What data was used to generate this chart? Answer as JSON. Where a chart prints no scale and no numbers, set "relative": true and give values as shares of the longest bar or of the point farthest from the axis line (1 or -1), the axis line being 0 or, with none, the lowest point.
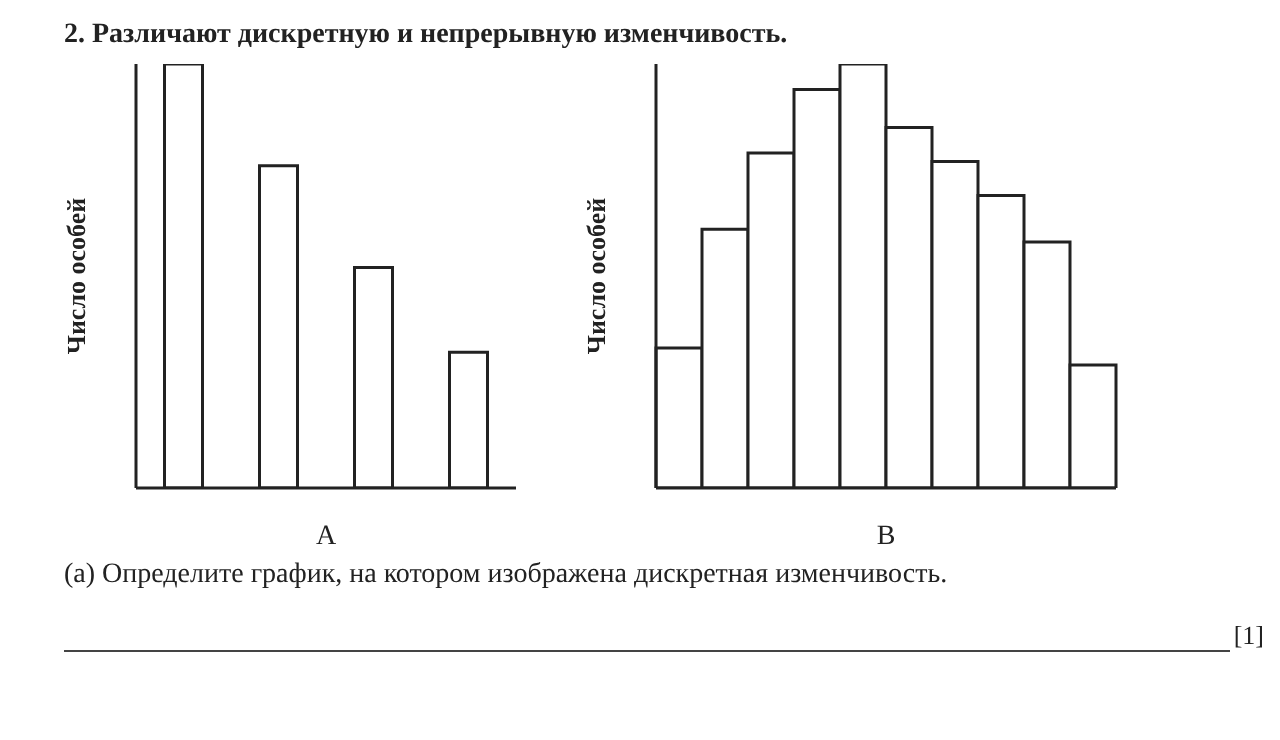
{
  "chart_data": [
    {
      "type": "bar",
      "title": "2. Различают дискретную и непрерывную изменчивость.",
      "xlabel": "A",
      "ylabel": "Число особей",
      "relative": true,
      "categories": [
        null,
        null,
        null,
        null
      ],
      "values": [
        1,
        0.76,
        0.52,
        0.32
      ],
      "color": "#ffffff",
      "annotations": [
        "(а) Определите график, на котором изображена дискретная изменчивость.",
        "[1]"
      ]
    },
    {
      "type": "bar",
      "xlabel": "B",
      "ylabel": "Число особей",
      "relative": true,
      "categories": [
        null,
        null,
        null,
        null,
        null,
        null,
        null,
        null,
        null,
        null
      ],
      "values": [
        0.33,
        0.61,
        0.79,
        0.94,
        1,
        0.85,
        0.77,
        0.69,
        0.58,
        0.29
      ],
      "color": "#ffffff"
    }
  ]
}
